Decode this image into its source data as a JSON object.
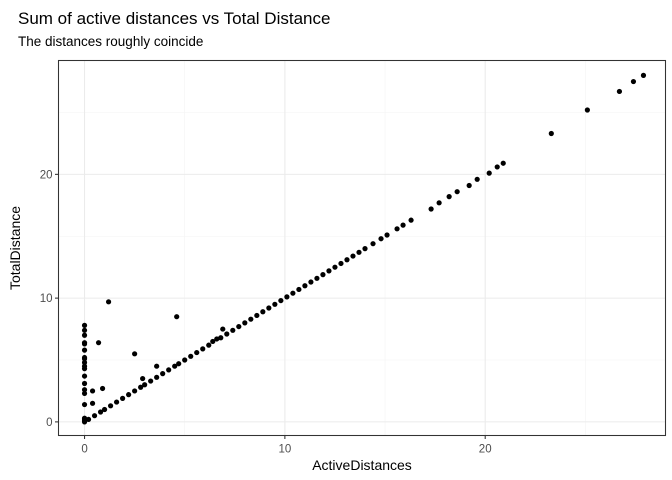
{
  "chart_data": {
    "type": "scatter",
    "title": "Sum of active distances vs Total Distance",
    "subtitle": "The distances roughly coincide",
    "xlabel": "ActiveDistances",
    "ylabel": "TotalDistance",
    "xlim": [
      -1.3,
      29.0
    ],
    "ylim": [
      -1.1,
      29.2
    ],
    "xticks": [
      0,
      10,
      20
    ],
    "yticks": [
      0,
      10,
      20
    ],
    "grid": true,
    "legend": "none",
    "point_color": "#000000",
    "points": [
      [
        0,
        0
      ],
      [
        0,
        0.1
      ],
      [
        0,
        0.2
      ],
      [
        0,
        0.3
      ],
      [
        0,
        1.4
      ],
      [
        0,
        2.3
      ],
      [
        0,
        2.6
      ],
      [
        0,
        3.1
      ],
      [
        0,
        3.7
      ],
      [
        0,
        4.3
      ],
      [
        0,
        4.5
      ],
      [
        0,
        4.8
      ],
      [
        0,
        5.1
      ],
      [
        0,
        5.2
      ],
      [
        0,
        5.8
      ],
      [
        0,
        6.3
      ],
      [
        0,
        6.4
      ],
      [
        0,
        7.0
      ],
      [
        0,
        7.4
      ],
      [
        0,
        7.8
      ],
      [
        0.4,
        2.5
      ],
      [
        0.4,
        1.5
      ],
      [
        0.7,
        6.4
      ],
      [
        0.9,
        2.7
      ],
      [
        1.2,
        9.7
      ],
      [
        2.5,
        5.5
      ],
      [
        2.9,
        3.5
      ],
      [
        3.6,
        4.5
      ],
      [
        4.6,
        8.5
      ],
      [
        6.9,
        7.5
      ],
      [
        0.2,
        0.2
      ],
      [
        0.5,
        0.5
      ],
      [
        0.8,
        0.8
      ],
      [
        1.0,
        1.0
      ],
      [
        1.3,
        1.3
      ],
      [
        1.6,
        1.6
      ],
      [
        1.9,
        1.9
      ],
      [
        2.2,
        2.2
      ],
      [
        2.5,
        2.5
      ],
      [
        2.8,
        2.8
      ],
      [
        3.0,
        3.0
      ],
      [
        3.3,
        3.3
      ],
      [
        3.6,
        3.6
      ],
      [
        3.9,
        3.9
      ],
      [
        4.2,
        4.2
      ],
      [
        4.5,
        4.5
      ],
      [
        4.7,
        4.7
      ],
      [
        5.0,
        5.0
      ],
      [
        5.3,
        5.3
      ],
      [
        5.6,
        5.6
      ],
      [
        5.9,
        5.9
      ],
      [
        6.2,
        6.2
      ],
      [
        6.4,
        6.5
      ],
      [
        6.6,
        6.7
      ],
      [
        6.8,
        6.8
      ],
      [
        7.1,
        7.1
      ],
      [
        7.4,
        7.4
      ],
      [
        7.7,
        7.7
      ],
      [
        8.0,
        8.0
      ],
      [
        8.3,
        8.3
      ],
      [
        8.6,
        8.6
      ],
      [
        8.9,
        8.9
      ],
      [
        9.2,
        9.2
      ],
      [
        9.5,
        9.5
      ],
      [
        9.8,
        9.8
      ],
      [
        10.1,
        10.1
      ],
      [
        10.4,
        10.4
      ],
      [
        10.7,
        10.7
      ],
      [
        11.0,
        11.0
      ],
      [
        11.3,
        11.3
      ],
      [
        11.6,
        11.6
      ],
      [
        11.9,
        11.9
      ],
      [
        12.2,
        12.2
      ],
      [
        12.5,
        12.5
      ],
      [
        12.8,
        12.8
      ],
      [
        13.1,
        13.1
      ],
      [
        13.4,
        13.4
      ],
      [
        13.7,
        13.7
      ],
      [
        14.0,
        14.0
      ],
      [
        14.4,
        14.4
      ],
      [
        14.8,
        14.8
      ],
      [
        15.1,
        15.1
      ],
      [
        15.6,
        15.6
      ],
      [
        15.9,
        15.9
      ],
      [
        16.3,
        16.3
      ],
      [
        17.3,
        17.2
      ],
      [
        17.7,
        17.7
      ],
      [
        18.2,
        18.2
      ],
      [
        18.6,
        18.6
      ],
      [
        19.2,
        19.1
      ],
      [
        19.6,
        19.6
      ],
      [
        20.2,
        20.1
      ],
      [
        20.6,
        20.6
      ],
      [
        20.9,
        20.9
      ],
      [
        23.3,
        23.3
      ],
      [
        25.1,
        25.2
      ],
      [
        26.7,
        26.7
      ],
      [
        27.4,
        27.5
      ],
      [
        27.9,
        28.0
      ]
    ]
  }
}
